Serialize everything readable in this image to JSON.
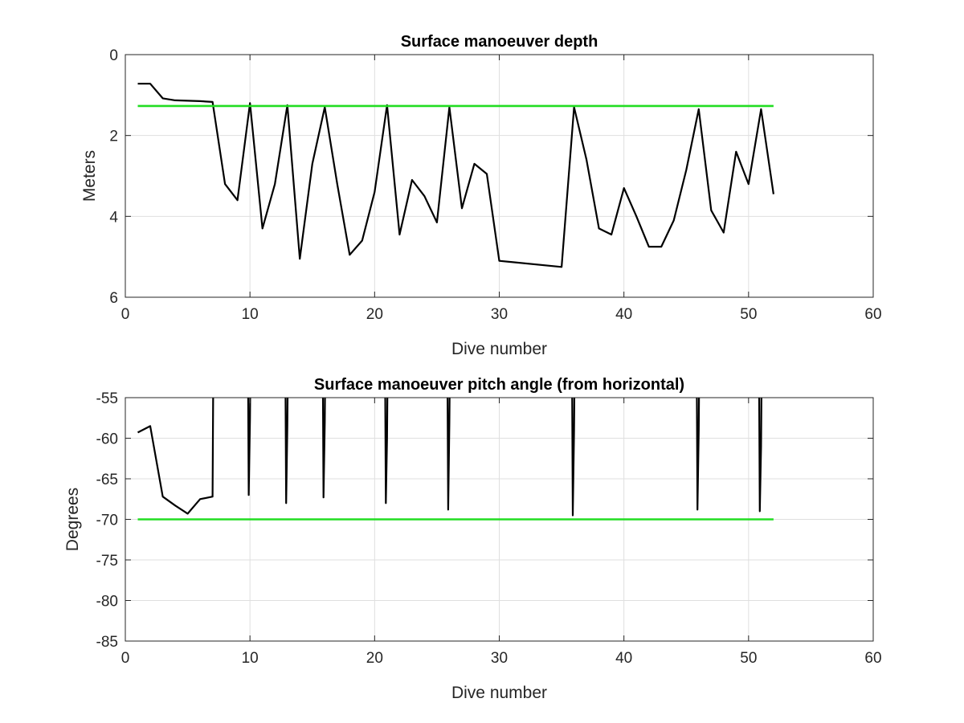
{
  "chart_data": [
    {
      "type": "line",
      "title": "Surface manoeuver depth",
      "xlabel": "Dive number",
      "ylabel": "Meters",
      "xlim": [
        0,
        60
      ],
      "ylim": [
        0,
        6
      ],
      "y_reversed": true,
      "xticks": [
        0,
        10,
        20,
        30,
        40,
        50,
        60
      ],
      "yticks": [
        0,
        2,
        4,
        6
      ],
      "grid": true,
      "series": [
        {
          "color": "#000000",
          "points": [
            [
              1,
              0.72
            ],
            [
              2,
              0.72
            ],
            [
              3,
              1.08
            ],
            [
              4,
              1.13
            ],
            [
              5,
              1.14
            ],
            [
              6,
              1.15
            ],
            [
              7,
              1.17
            ],
            [
              8,
              3.2
            ],
            [
              9,
              3.6
            ],
            [
              10,
              1.2
            ],
            [
              11,
              4.3
            ],
            [
              12,
              3.2
            ],
            [
              13,
              1.25
            ],
            [
              14,
              5.05
            ],
            [
              15,
              2.7
            ],
            [
              16,
              1.3
            ],
            [
              17,
              3.2
            ],
            [
              18,
              4.95
            ],
            [
              19,
              4.6
            ],
            [
              20,
              3.4
            ],
            [
              21,
              1.25
            ],
            [
              22,
              4.45
            ],
            [
              23,
              3.1
            ],
            [
              24,
              3.5
            ],
            [
              25,
              4.15
            ],
            [
              26,
              1.3
            ],
            [
              27,
              3.8
            ],
            [
              28,
              2.7
            ],
            [
              29,
              2.95
            ],
            [
              30,
              5.1
            ],
            [
              35,
              5.25
            ],
            [
              36,
              1.3
            ],
            [
              37,
              2.6
            ],
            [
              38,
              4.3
            ],
            [
              39,
              4.45
            ],
            [
              40,
              3.3
            ],
            [
              41,
              4.0
            ],
            [
              42,
              4.75
            ],
            [
              43,
              4.75
            ],
            [
              44,
              4.1
            ],
            [
              45,
              2.85
            ],
            [
              46,
              1.35
            ],
            [
              47,
              3.85
            ],
            [
              48,
              4.4
            ],
            [
              49,
              2.4
            ],
            [
              50,
              3.2
            ],
            [
              51,
              1.35
            ],
            [
              52,
              3.45
            ]
          ]
        },
        {
          "color": "#22dd22",
          "points": [
            [
              1,
              1.27
            ],
            [
              52,
              1.27
            ]
          ]
        }
      ]
    },
    {
      "type": "line",
      "title": "Surface manoeuver pitch angle (from horizontal)",
      "xlabel": "Dive number",
      "ylabel": "Degrees",
      "xlim": [
        0,
        60
      ],
      "ylim": [
        -85,
        -55
      ],
      "xticks": [
        0,
        10,
        20,
        30,
        40,
        50,
        60
      ],
      "yticks": [
        -55,
        -60,
        -65,
        -70,
        -75,
        -80,
        -85
      ],
      "grid": true,
      "series": [
        {
          "color": "#000000",
          "points": [
            [
              1,
              -59.3
            ],
            [
              2,
              -58.5
            ],
            [
              3,
              -67.2
            ],
            [
              4,
              -68.3
            ],
            [
              5,
              -69.3
            ],
            [
              6,
              -67.5
            ],
            [
              7,
              -67.2
            ],
            [
              7.1,
              -40
            ],
            [
              9.8,
              -40
            ],
            [
              9.9,
              -67
            ],
            [
              10.0,
              -57.5
            ],
            [
              10.1,
              -40
            ],
            [
              12.8,
              -40
            ],
            [
              12.9,
              -68
            ],
            [
              13.0,
              -58.5
            ],
            [
              13.1,
              -40
            ],
            [
              15.8,
              -40
            ],
            [
              15.9,
              -67.3
            ],
            [
              16.0,
              -58
            ],
            [
              16.1,
              -40
            ],
            [
              20.8,
              -40
            ],
            [
              20.9,
              -68
            ],
            [
              21.0,
              -60
            ],
            [
              21.1,
              -40
            ],
            [
              25.8,
              -40
            ],
            [
              25.9,
              -68.8
            ],
            [
              26.0,
              -58
            ],
            [
              26.1,
              -40
            ],
            [
              35.8,
              -40
            ],
            [
              35.9,
              -69.5
            ],
            [
              36.0,
              -59
            ],
            [
              36.1,
              -40
            ],
            [
              45.8,
              -40
            ],
            [
              45.9,
              -68.8
            ],
            [
              46.0,
              -59
            ],
            [
              46.1,
              -40
            ],
            [
              50.8,
              -40
            ],
            [
              50.9,
              -69
            ],
            [
              51.0,
              -61
            ],
            [
              51.1,
              -40
            ]
          ]
        },
        {
          "color": "#22dd22",
          "points": [
            [
              1,
              -70
            ],
            [
              52,
              -70
            ]
          ]
        }
      ]
    }
  ]
}
